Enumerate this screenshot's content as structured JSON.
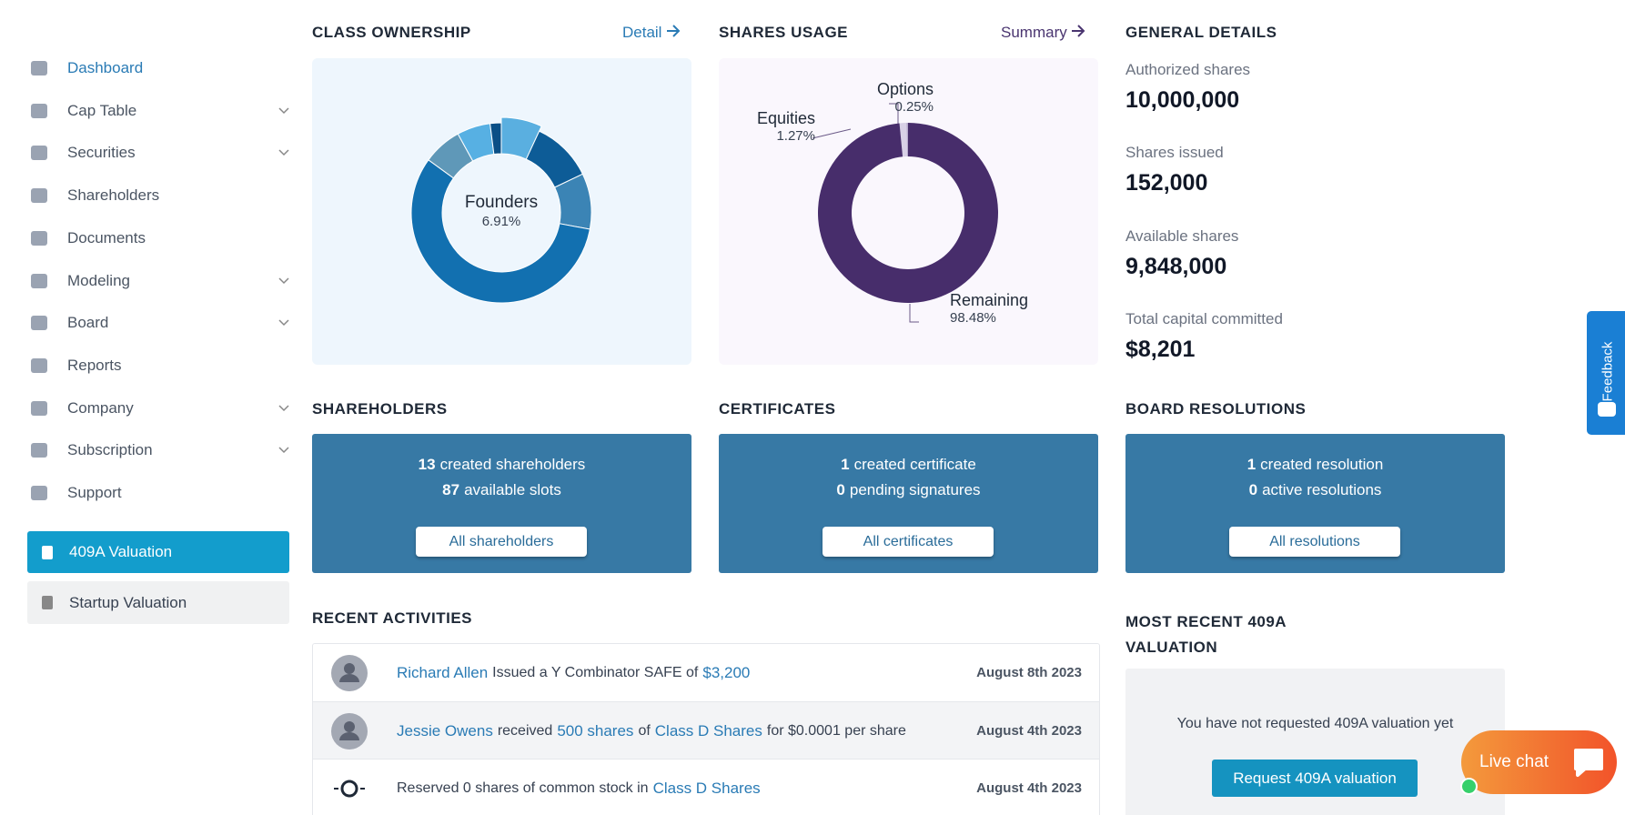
{
  "sidebar": {
    "items": [
      {
        "label": "Dashboard",
        "active": true,
        "expandable": false
      },
      {
        "label": "Cap Table",
        "active": false,
        "expandable": true
      },
      {
        "label": "Securities",
        "active": false,
        "expandable": true
      },
      {
        "label": "Shareholders",
        "active": false,
        "expandable": false
      },
      {
        "label": "Documents",
        "active": false,
        "expandable": false
      },
      {
        "label": "Modeling",
        "active": false,
        "expandable": true
      },
      {
        "label": "Board",
        "active": false,
        "expandable": true
      },
      {
        "label": "Reports",
        "active": false,
        "expandable": false
      },
      {
        "label": "Company",
        "active": false,
        "expandable": true
      },
      {
        "label": "Subscription",
        "active": false,
        "expandable": true
      },
      {
        "label": "Support",
        "active": false,
        "expandable": false
      }
    ],
    "buttons": [
      "409A Valuation",
      "Startup Valuation"
    ]
  },
  "class_ownership": {
    "title": "CLASS OWNERSHIP",
    "link": "Detail",
    "chart": {
      "type": "pie",
      "values": [
        6.91,
        11,
        10,
        57.09,
        7,
        6,
        2
      ],
      "colors": [
        "#5aafe0",
        "#0d5c97",
        "#3b84b5",
        "#1270b0",
        "#5f98b8",
        "#57b0e3",
        "#0a4f86"
      ],
      "center": {
        "name": "Founders",
        "value_label": "6.91%"
      }
    }
  },
  "shares_usage": {
    "title": "SHARES USAGE",
    "link": "Summary",
    "chart": {
      "type": "pie",
      "series": [
        {
          "name": "Equities",
          "value": 1.27,
          "value_label": "1.27%",
          "color": "#d8d0e6"
        },
        {
          "name": "Options",
          "value": 0.25,
          "value_label": "0.25%",
          "color": "#b6a9cc"
        },
        {
          "name": "Remaining",
          "value": 98.48,
          "value_label": "98.48%",
          "color": "#472d6b"
        }
      ]
    }
  },
  "general_details": {
    "title": "GENERAL DETAILS",
    "items": [
      {
        "label": "Authorized shares",
        "value": "10,000,000"
      },
      {
        "label": "Shares issued",
        "value": "152,000"
      },
      {
        "label": "Available shares",
        "value": "9,848,000"
      },
      {
        "label": "Total capital committed",
        "value": "$8,201"
      }
    ]
  },
  "stat_boxes": [
    {
      "title": "SHAREHOLDERS",
      "lines": [
        {
          "count": 13,
          "text": "created shareholders"
        },
        {
          "count": 87,
          "text": "available slots"
        }
      ],
      "button": "All shareholders"
    },
    {
      "title": "CERTIFICATES",
      "lines": [
        {
          "count": 1,
          "text": "created certificate"
        },
        {
          "count": 0,
          "text": "pending signatures"
        }
      ],
      "button": "All certificates"
    },
    {
      "title": "BOARD RESOLUTIONS",
      "lines": [
        {
          "count": 1,
          "text": "created resolution"
        },
        {
          "count": 0,
          "text": "active resolutions"
        }
      ],
      "button": "All resolutions"
    }
  ],
  "recent_activities": {
    "title": "RECENT ACTIVITIES",
    "rows": [
      {
        "icon": "user",
        "parts": [
          {
            "text": "Richard Allen",
            "link": true
          },
          {
            "text": "Issued a Y Combinator SAFE of",
            "link": false
          },
          {
            "text": "$3,200",
            "link": true
          }
        ],
        "date": "August 8th 2023"
      },
      {
        "icon": "user",
        "parts": [
          {
            "text": "Jessie Owens",
            "link": true
          },
          {
            "text": "received",
            "link": false
          },
          {
            "text": "500 shares",
            "link": true
          },
          {
            "text": "of",
            "link": false
          },
          {
            "text": "Class D Shares",
            "link": true
          },
          {
            "text": "for $0.0001 per share",
            "link": false
          }
        ],
        "date": "August 4th 2023"
      },
      {
        "icon": "reserve",
        "parts": [
          {
            "text": "Reserved 0 shares of common stock in",
            "link": false
          },
          {
            "text": "Class D Shares",
            "link": true
          }
        ],
        "date": "August 4th 2023"
      }
    ]
  },
  "valuation_409a": {
    "title": "MOST RECENT 409A VALUATION",
    "message": "You have not requested 409A valuation yet",
    "button": "Request 409A valuation"
  },
  "feedback": "Feedback",
  "live_chat": "Live chat"
}
